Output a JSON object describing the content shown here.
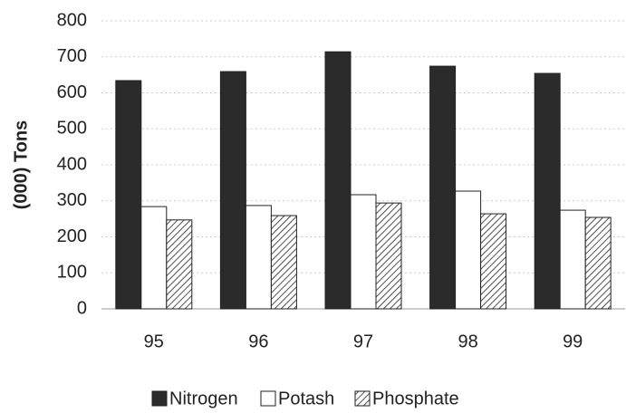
{
  "chart_data": {
    "type": "bar",
    "y_label": "(000) Tons",
    "categories": [
      "95",
      "96",
      "97",
      "98",
      "99"
    ],
    "series": [
      {
        "name": "Nitrogen",
        "color": "#2b2b2b",
        "values": [
          634,
          659,
          714,
          674,
          654
        ]
      },
      {
        "name": "Potash",
        "color": "#ffffff",
        "values": [
          284,
          287,
          317,
          327,
          274
        ]
      },
      {
        "name": "Phosphate",
        "color": "#ffffff",
        "hatch": true,
        "values": [
          247,
          259,
          294,
          264,
          254
        ]
      }
    ],
    "ylim": [
      0,
      800
    ],
    "yticks": [
      0,
      100,
      200,
      300,
      400,
      500,
      600,
      700,
      800
    ],
    "grid": true,
    "legend": "bottom"
  }
}
